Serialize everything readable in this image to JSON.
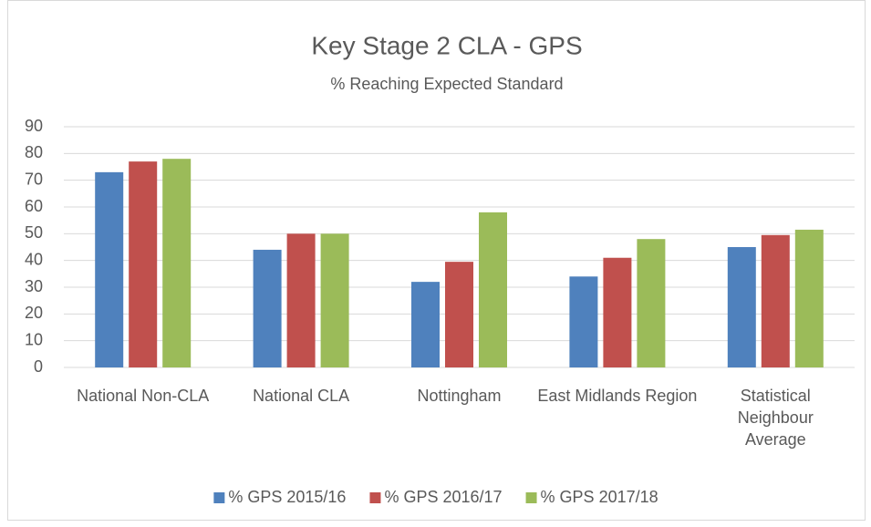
{
  "chart_data": {
    "type": "bar",
    "title": "Key Stage 2 CLA - GPS",
    "subtitle": "% Reaching Expected Standard",
    "categories": [
      "National Non-CLA",
      "National CLA",
      "Nottingham",
      "East Midlands Region",
      "Statistical Neighbour Average"
    ],
    "series": [
      {
        "name": "% GPS 2015/16",
        "color": "#4f81bd",
        "values": [
          73,
          44,
          32,
          34,
          45
        ]
      },
      {
        "name": "% GPS 2016/17",
        "color": "#c0504d",
        "values": [
          77,
          50,
          39.5,
          41,
          49.5
        ]
      },
      {
        "name": "% GPS 2017/18",
        "color": "#9bbb59",
        "values": [
          78,
          50,
          58,
          48,
          51.5
        ]
      }
    ],
    "ylim": [
      0,
      90
    ],
    "yticks": [
      0,
      10,
      20,
      30,
      40,
      50,
      60,
      70,
      80,
      90
    ],
    "grid": true,
    "legend": "bottom"
  }
}
